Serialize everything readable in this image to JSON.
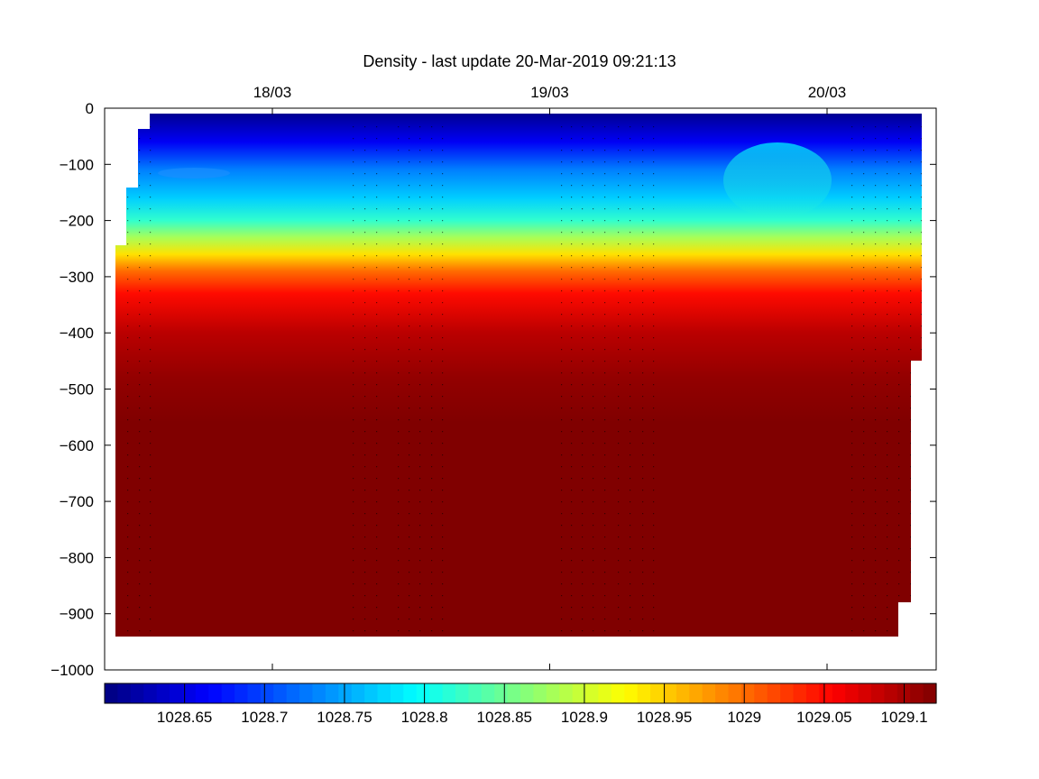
{
  "chart_data": {
    "type": "heatmap",
    "title": "Density - last update 20-Mar-2019 09:21:13",
    "xlabel": "",
    "ylabel": "",
    "x_ticks": [
      "18/03",
      "19/03",
      "20/03"
    ],
    "y_ticks": [
      0,
      -100,
      -200,
      -300,
      -400,
      -500,
      -600,
      -700,
      -800,
      -900,
      -1000
    ],
    "ylim": [
      -1000,
      0
    ],
    "grid": false,
    "colormap": "jet",
    "colorbar": {
      "orientation": "horizontal",
      "position": "bottom",
      "clim": [
        1028.6,
        1029.12
      ],
      "ticks": [
        "1028.65",
        "1028.7",
        "1028.75",
        "1028.8",
        "1028.85",
        "1028.9",
        "1028.95",
        "1029",
        "1029.05",
        "1029.1"
      ]
    },
    "density_profile": [
      {
        "depth": -10,
        "value": 1028.61
      },
      {
        "depth": -60,
        "value": 1028.66
      },
      {
        "depth": -110,
        "value": 1028.73
      },
      {
        "depth": -160,
        "value": 1028.77
      },
      {
        "depth": -200,
        "value": 1028.82
      },
      {
        "depth": -230,
        "value": 1028.88
      },
      {
        "depth": -260,
        "value": 1028.94
      },
      {
        "depth": -290,
        "value": 1029.0
      },
      {
        "depth": -330,
        "value": 1029.05
      },
      {
        "depth": -400,
        "value": 1029.09
      },
      {
        "depth": -480,
        "value": 1029.11
      },
      {
        "depth": -560,
        "value": 1029.12
      },
      {
        "depth": -940,
        "value": 1029.12
      }
    ],
    "features": [
      {
        "label": "fresher pulse near 20/03",
        "depth_range": [
          -120,
          -200
        ],
        "value": 1028.8
      }
    ]
  }
}
